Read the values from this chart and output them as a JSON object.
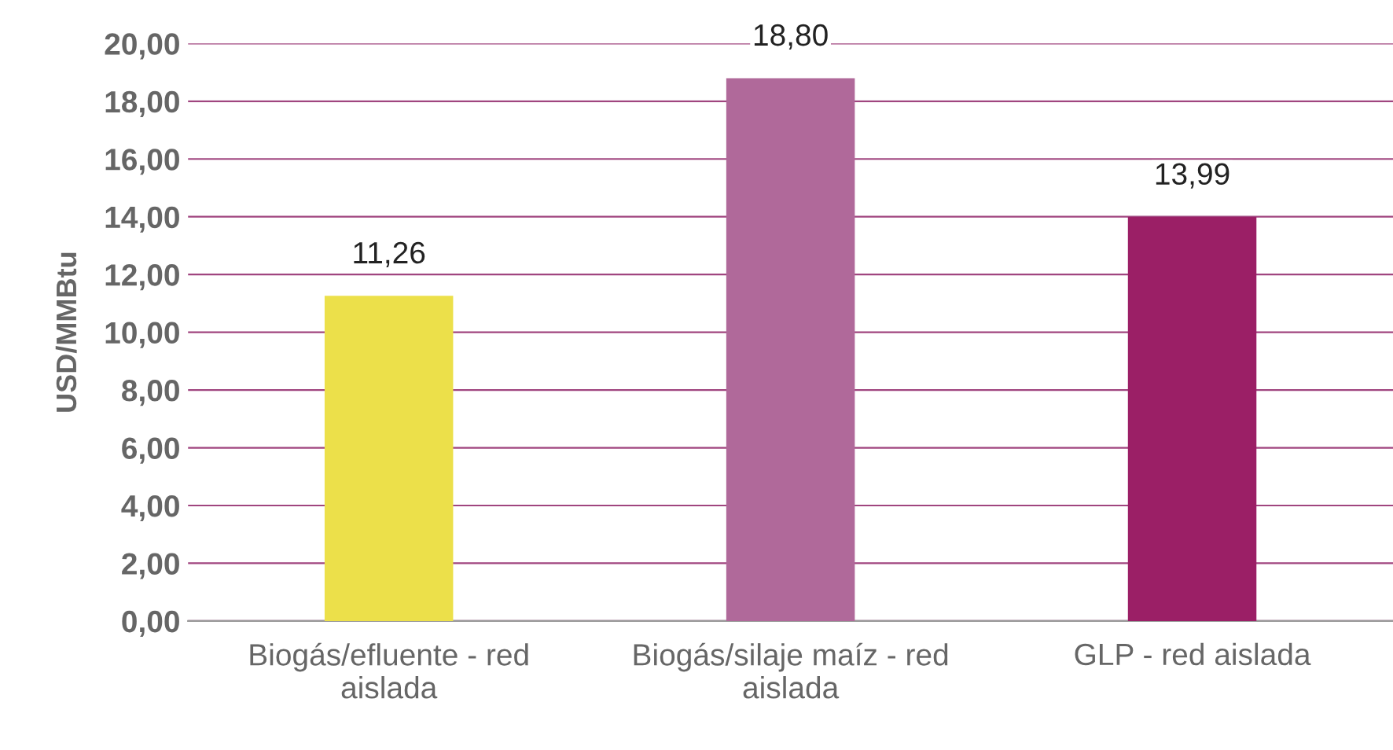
{
  "chart_data": {
    "type": "bar",
    "ylabel": "USD/MMBtu",
    "categories": [
      "Biogás/efluente - red\naislada",
      "Biogás/silaje maíz - red\naislada",
      "GLP - red aislada"
    ],
    "values": [
      11.26,
      18.8,
      13.99
    ],
    "colors": [
      "#ece04a",
      "#b0699a",
      "#9b1f66"
    ],
    "value_labels": [
      "11,26",
      "18,80",
      "13,99"
    ],
    "ylim": [
      0,
      20
    ],
    "yticks": [
      {
        "value": 0,
        "label": "0,00"
      },
      {
        "value": 2,
        "label": "2,00"
      },
      {
        "value": 4,
        "label": "4,00"
      },
      {
        "value": 6,
        "label": "6,00"
      },
      {
        "value": 8,
        "label": "8,00"
      },
      {
        "value": 10,
        "label": "10,00"
      },
      {
        "value": 12,
        "label": "12,00"
      },
      {
        "value": 14,
        "label": "14,00"
      },
      {
        "value": 16,
        "label": "16,00"
      },
      {
        "value": 18,
        "label": "18,00"
      },
      {
        "value": 20,
        "label": "20,00"
      }
    ],
    "grid": "y"
  }
}
